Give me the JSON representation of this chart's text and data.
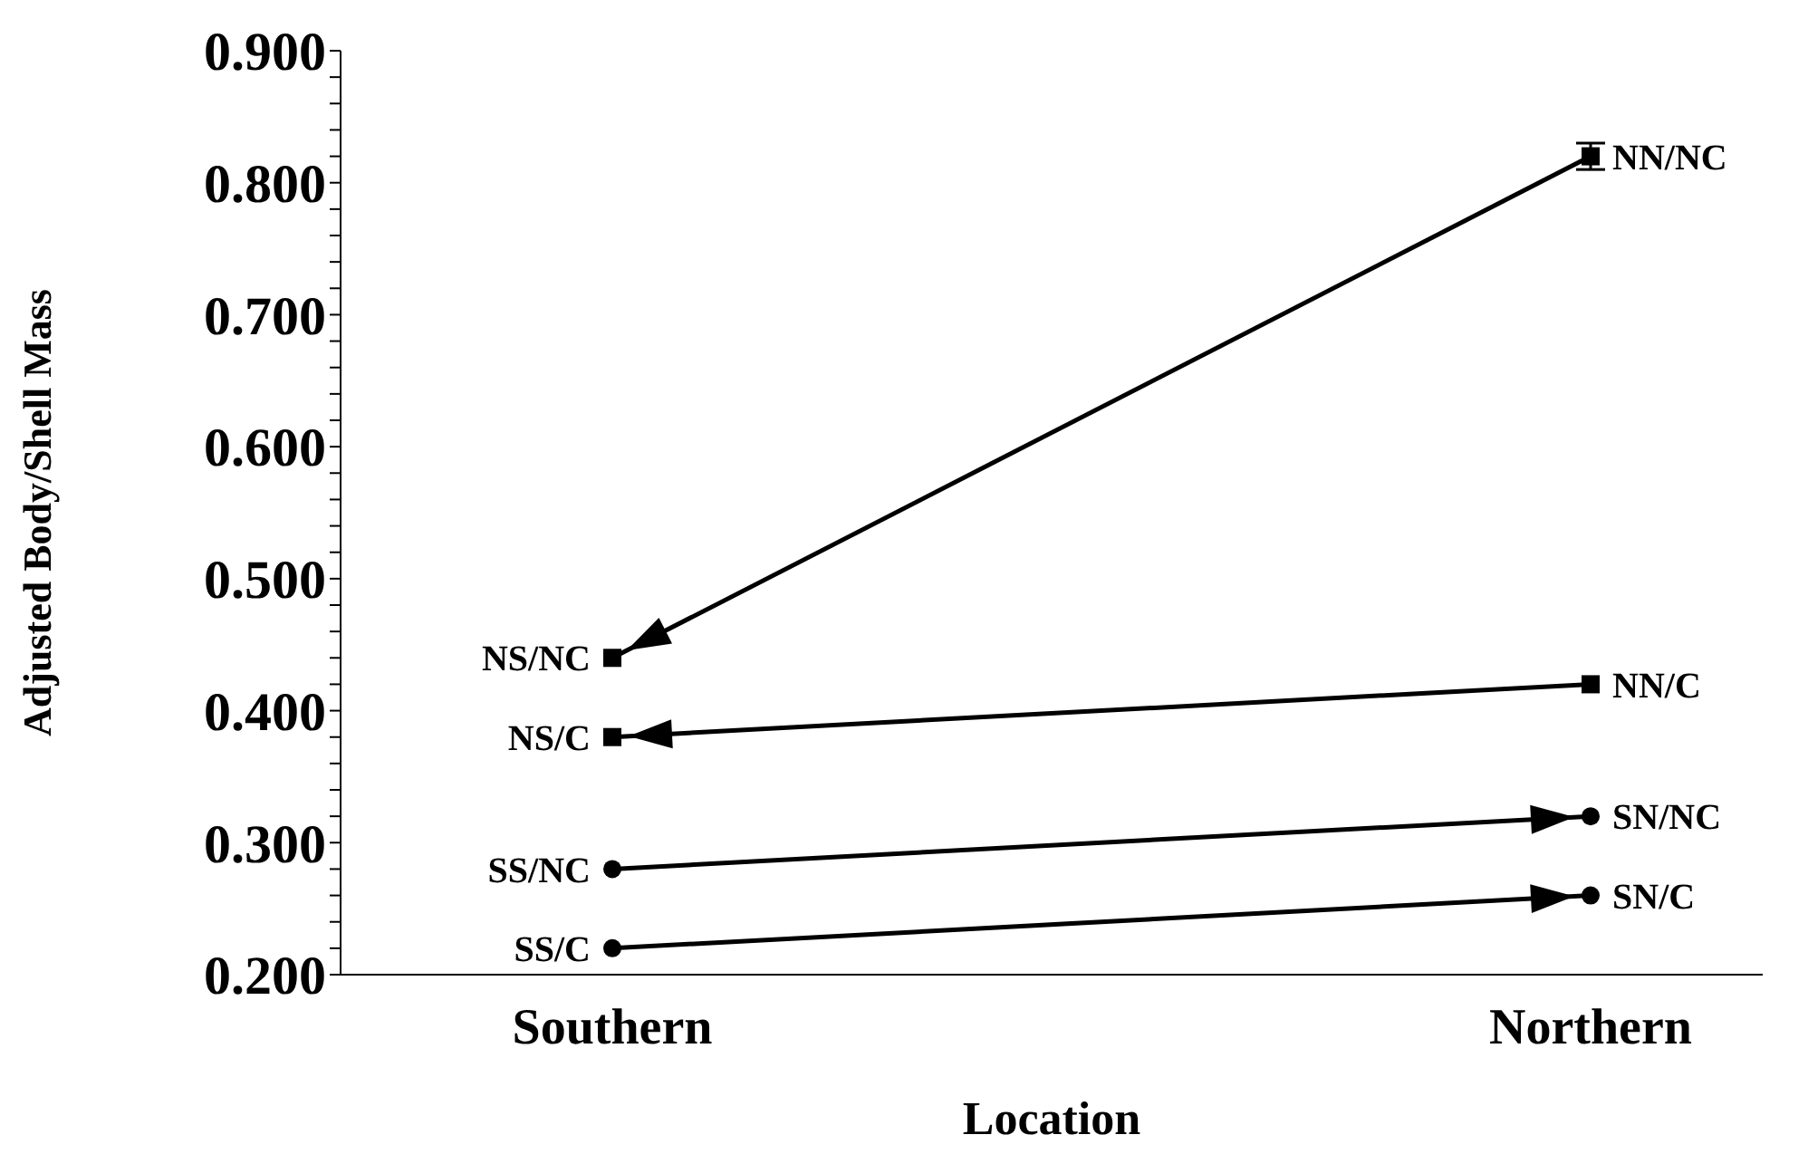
{
  "chart_data": {
    "type": "line",
    "xlabel": "Location",
    "ylabel": "Adjusted  Body/Shell  Mass",
    "categories": [
      "Southern",
      "Northern"
    ],
    "ylim": [
      0.2,
      0.9
    ],
    "yticks": [
      {
        "value": 0.2,
        "label": "0.200"
      },
      {
        "value": 0.22,
        "label": null
      },
      {
        "value": 0.24,
        "label": null
      },
      {
        "value": 0.26,
        "label": null
      },
      {
        "value": 0.28,
        "label": null
      },
      {
        "value": 0.3,
        "label": "0.300"
      },
      {
        "value": 0.32,
        "label": null
      },
      {
        "value": 0.34,
        "label": null
      },
      {
        "value": 0.36,
        "label": null
      },
      {
        "value": 0.38,
        "label": null
      },
      {
        "value": 0.4,
        "label": "0.400"
      },
      {
        "value": 0.42,
        "label": null
      },
      {
        "value": 0.44,
        "label": null
      },
      {
        "value": 0.46,
        "label": null
      },
      {
        "value": 0.48,
        "label": null
      },
      {
        "value": 0.5,
        "label": "0.500"
      },
      {
        "value": 0.52,
        "label": null
      },
      {
        "value": 0.54,
        "label": null
      },
      {
        "value": 0.56,
        "label": null
      },
      {
        "value": 0.58,
        "label": null
      },
      {
        "value": 0.6,
        "label": "0.600"
      },
      {
        "value": 0.62,
        "label": null
      },
      {
        "value": 0.64,
        "label": null
      },
      {
        "value": 0.66,
        "label": null
      },
      {
        "value": 0.68,
        "label": null
      },
      {
        "value": 0.7,
        "label": "0.700"
      },
      {
        "value": 0.72,
        "label": null
      },
      {
        "value": 0.74,
        "label": null
      },
      {
        "value": 0.76,
        "label": null
      },
      {
        "value": 0.78,
        "label": null
      },
      {
        "value": 0.8,
        "label": "0.800"
      },
      {
        "value": 0.82,
        "label": null
      },
      {
        "value": 0.84,
        "label": null
      },
      {
        "value": 0.86,
        "label": null
      },
      {
        "value": 0.88,
        "label": null
      },
      {
        "value": 0.9,
        "label": "0.900"
      }
    ],
    "grid": false,
    "legend": false,
    "series": [
      {
        "color": "#000000",
        "marker": "square",
        "x": [
          "Northern",
          "Southern"
        ],
        "values": [
          0.82,
          0.44
        ],
        "errors": [
          0.01,
          null
        ]
      },
      {
        "color": "#000000",
        "marker": "square",
        "x": [
          "Northern",
          "Southern"
        ],
        "values": [
          0.42,
          0.38
        ]
      },
      {
        "color": "#000000",
        "marker": "circle",
        "x": [
          "Southern",
          "Northern"
        ],
        "values": [
          0.28,
          0.32
        ]
      },
      {
        "color": "#000000",
        "marker": "circle",
        "x": [
          "Southern",
          "Northern"
        ],
        "values": [
          0.22,
          0.26
        ]
      }
    ],
    "annotations": [
      {
        "text": "NN/NC",
        "x": "Northern",
        "y": 0.82
      },
      {
        "text": "NS/NC",
        "x": "Southern",
        "y": 0.44
      },
      {
        "text": "NN/C",
        "x": "Northern",
        "y": 0.42
      },
      {
        "text": "NS/C",
        "x": "Southern",
        "y": 0.38
      },
      {
        "text": "SS/NC",
        "x": "Southern",
        "y": 0.28
      },
      {
        "text": "SN/NC",
        "x": "Northern",
        "y": 0.32
      },
      {
        "text": "SS/C",
        "x": "Southern",
        "y": 0.22
      },
      {
        "text": "SN/C",
        "x": "Northern",
        "y": 0.26
      }
    ]
  }
}
